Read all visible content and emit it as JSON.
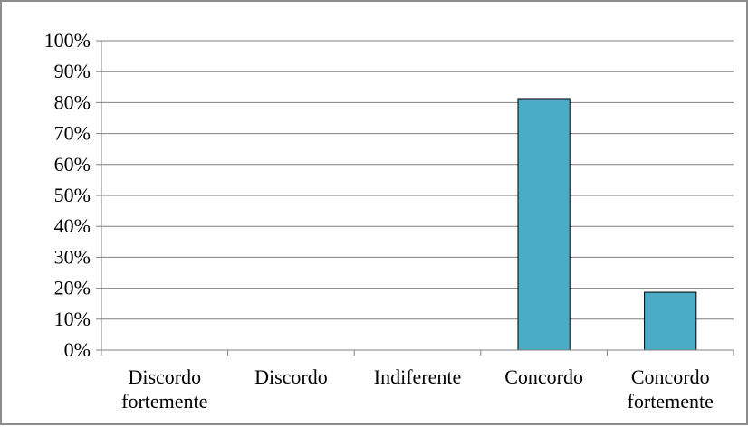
{
  "chart_data": {
    "type": "bar",
    "title": "",
    "xlabel": "",
    "ylabel": "",
    "categories": [
      [
        "Discordo",
        "fortemente"
      ],
      [
        "Discordo"
      ],
      [
        "Indiferente"
      ],
      [
        "Concordo"
      ],
      [
        "Concordo",
        "fortemente"
      ]
    ],
    "values": [
      0,
      0,
      0,
      81.3,
      18.7
    ],
    "ylim": [
      0,
      100
    ],
    "yticks": [
      0,
      10,
      20,
      30,
      40,
      50,
      60,
      70,
      80,
      90,
      100
    ],
    "ytick_labels": [
      "0%",
      "10%",
      "20%",
      "30%",
      "40%",
      "50%",
      "60%",
      "70%",
      "80%",
      "90%",
      "100%"
    ],
    "grid": true,
    "legend": "none",
    "colors": {
      "bar_fill": "#4bacc6",
      "bar_stroke": "#000000",
      "gridline": "#7f7f7f",
      "axis": "#7f7f7f",
      "frame": "#8c8c8c"
    }
  }
}
